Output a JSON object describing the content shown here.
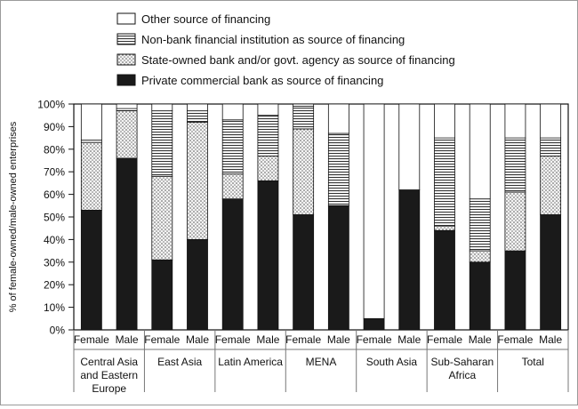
{
  "chart_data": {
    "type": "bar",
    "stacked": true,
    "title": "",
    "xlabel": "",
    "ylabel": "% of female-owned/male-owned enterprises",
    "ylim": [
      0,
      100
    ],
    "yticks": [
      "0%",
      "10%",
      "20%",
      "30%",
      "40%",
      "50%",
      "60%",
      "70%",
      "80%",
      "90%",
      "100%"
    ],
    "legend_position": "top",
    "groups": [
      {
        "label": "Central Asia and Eastern Europe",
        "lines": [
          "Central Asia",
          "and Eastern",
          "Europe"
        ]
      },
      {
        "label": "East Asia",
        "lines": [
          "East Asia"
        ]
      },
      {
        "label": "Latin America",
        "lines": [
          "Latin America"
        ]
      },
      {
        "label": "MENA",
        "lines": [
          "MENA"
        ]
      },
      {
        "label": "South Asia",
        "lines": [
          "South Asia"
        ]
      },
      {
        "label": "Sub-Saharan Africa",
        "lines": [
          "Sub-Saharan",
          "Africa"
        ]
      },
      {
        "label": "Total",
        "lines": [
          "Total"
        ]
      }
    ],
    "categories": [
      "Female",
      "Male",
      "Female",
      "Male",
      "Female",
      "Male",
      "Female",
      "Male",
      "Female",
      "Male",
      "Female",
      "Male",
      "Female",
      "Male"
    ],
    "series": [
      {
        "name": "Private commercial bank as source of financing",
        "pattern": "solid",
        "values": [
          53,
          76,
          31,
          40,
          58,
          66,
          51,
          55,
          5,
          62,
          44,
          30,
          35,
          51
        ]
      },
      {
        "name": "State-owned bank and/or govt. agency as source of financing",
        "pattern": "dots",
        "values": [
          30,
          21,
          37,
          52,
          11,
          11,
          38,
          0,
          0,
          0,
          2,
          5,
          26,
          26
        ]
      },
      {
        "name": "Non-bank financial institution as source of financing",
        "pattern": "hlines",
        "values": [
          1,
          1,
          29,
          5,
          24,
          18,
          10,
          32,
          0,
          0,
          39,
          23,
          24,
          8
        ]
      },
      {
        "name": "Other source of financing",
        "pattern": "white",
        "values": [
          16,
          2,
          3,
          3,
          7,
          5,
          1,
          13,
          95,
          38,
          15,
          42,
          15,
          15
        ]
      }
    ],
    "colors": {
      "solid": "#1a1a1a",
      "background": "#ffffff",
      "divider": "#777777"
    }
  }
}
